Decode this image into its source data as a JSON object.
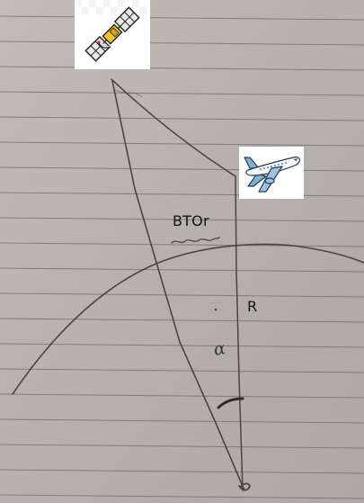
{
  "labels": {
    "btor": "BTOr",
    "radius": "R",
    "angle": "α"
  },
  "icons": {
    "satellite": "satellite-icon",
    "airplane": "airplane-icon"
  },
  "colors": {
    "paper": "#b9b3ae",
    "ruled_line": "#6f6a74",
    "pencil": "#4a4540",
    "ink": "#111111"
  }
}
